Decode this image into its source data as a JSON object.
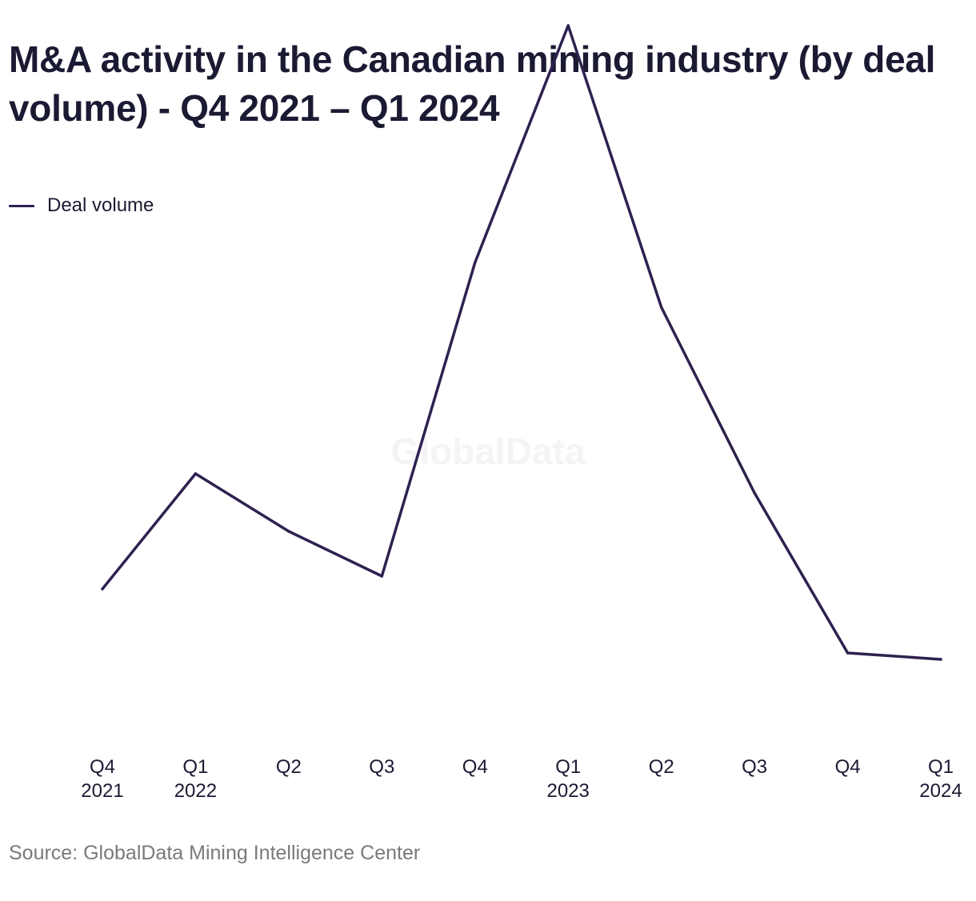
{
  "chart_data": {
    "type": "line",
    "title": "M&A activity in the Canadian mining industry (by deal volume) - Q4 2021 – Q1 2024",
    "categories": [
      [
        "Q4",
        "2021"
      ],
      [
        "Q1",
        "2022"
      ],
      [
        "Q2",
        ""
      ],
      [
        "Q3",
        ""
      ],
      [
        "Q4",
        ""
      ],
      [
        "Q1",
        "2023"
      ],
      [
        "Q2",
        ""
      ],
      [
        "Q3",
        ""
      ],
      [
        "Q4",
        ""
      ],
      [
        "Q1",
        "2024"
      ]
    ],
    "series": [
      {
        "name": "Deal volume",
        "color": "#2f2150",
        "values": [
          33,
          51,
          42,
          35,
          84,
          121,
          77,
          48,
          23,
          22
        ]
      }
    ],
    "ylim": [
      0,
      125
    ],
    "grid": false,
    "legend_position": "top-left",
    "watermark": "GlobalData",
    "source": "Source: GlobalData Mining Intelligence Center"
  }
}
